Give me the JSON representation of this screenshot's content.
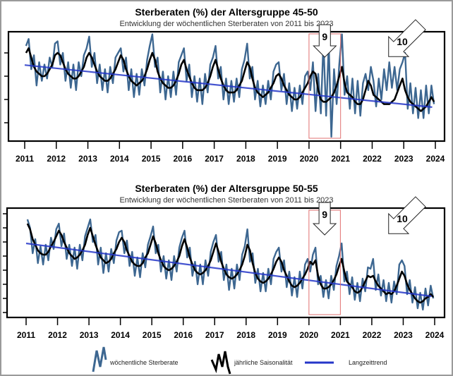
{
  "colors": {
    "weekly": "#3d6791",
    "seasonal": "#000000",
    "trend": "#2536c8",
    "highlight": "#e07070"
  },
  "legend": {
    "weekly": "wöchentliche Sterberate",
    "seasonal": "jährliche Saisonalität",
    "trend": "Langzeittrend"
  },
  "chart_data": [
    {
      "type": "line",
      "title": "Sterberaten (%) der Altersgruppe 45-50",
      "subtitle": "Entwicklung der wöchentlichen Sterberaten von 2011 bis 2023",
      "xlabel": "",
      "ylabel": "",
      "x_ticks": [
        "2011",
        "2012",
        "2013",
        "2014",
        "2015",
        "2016",
        "2017",
        "2018",
        "2019",
        "2020",
        "2021",
        "2022",
        "2023",
        "2024"
      ],
      "xlim": [
        2011,
        2024
      ],
      "y_axis": "unlabeled ticks, relative scale",
      "ylim": [
        0.2,
        4.9
      ],
      "y_ticks": [
        1,
        2,
        3,
        4
      ],
      "x_resolution": "monthly, 2011-01 to 2023-12",
      "annotations": [
        {
          "label": "9",
          "type": "down-arrow",
          "x": 2020.5
        },
        {
          "label": "10",
          "type": "diagonal-arrow",
          "x": 2022.9
        }
      ],
      "highlight_range": [
        2020,
        2021
      ],
      "series": [
        {
          "key": "weekly",
          "values": [
            4.3,
            4.6,
            3.3,
            3.9,
            2.6,
            3.6,
            2.8,
            3.5,
            2.9,
            3.8,
            3.4,
            4.4,
            4.5,
            3.5,
            4.0,
            2.8,
            3.6,
            2.5,
            3.5,
            2.4,
            3.6,
            3.0,
            3.9,
            4.2,
            4.7,
            3.4,
            4.0,
            2.7,
            3.5,
            2.4,
            3.3,
            2.3,
            3.4,
            2.7,
            3.8,
            4.0,
            4.2,
            3.2,
            3.8,
            2.4,
            3.3,
            2.1,
            3.1,
            2.2,
            3.3,
            2.6,
            3.7,
            4.3,
            4.8,
            3.4,
            3.8,
            2.3,
            3.2,
            2.0,
            3.0,
            2.1,
            3.2,
            2.2,
            3.6,
            3.9,
            4.2,
            2.8,
            3.5,
            2.1,
            3.0,
            1.9,
            2.9,
            1.8,
            3.1,
            2.3,
            3.5,
            3.8,
            4.3,
            2.9,
            3.4,
            2.0,
            2.9,
            1.8,
            2.8,
            1.9,
            2.9,
            2.1,
            3.3,
            3.7,
            4.4,
            2.9,
            3.4,
            2.0,
            2.8,
            1.7,
            2.6,
            1.8,
            2.8,
            2.0,
            3.2,
            3.5,
            3.6,
            2.4,
            3.1,
            1.8,
            2.7,
            1.5,
            2.5,
            1.6,
            2.6,
            1.8,
            3.0,
            3.2,
            2.4,
            3.6,
            1.5,
            3.1,
            1.4,
            4.5,
            1.3,
            4.4,
            0.4,
            3.3,
            1.8,
            3.5,
            4.8,
            2.2,
            3.0,
            1.6,
            2.9,
            1.4,
            2.8,
            1.3,
            2.7,
            3.1,
            2.4,
            3.4,
            2.8,
            1.7,
            2.9,
            2.0,
            3.3,
            2.4,
            3.6,
            2.5,
            3.4,
            2.4,
            3.3,
            3.6,
            4.0,
            1.6,
            2.7,
            1.4,
            2.5,
            1.2,
            2.4,
            1.2,
            2.6,
            1.4,
            2.6,
            1.8
          ]
        },
        {
          "key": "seasonal",
          "values": [
            4.0,
            4.2,
            3.8,
            3.4,
            3.2,
            3.1,
            3.0,
            3.0,
            3.1,
            3.3,
            3.5,
            3.9,
            4.0,
            3.9,
            3.6,
            3.3,
            3.1,
            3.0,
            2.9,
            2.9,
            3.0,
            3.2,
            3.4,
            3.8,
            4.0,
            3.8,
            3.5,
            3.2,
            3.0,
            2.9,
            2.8,
            2.8,
            2.9,
            3.1,
            3.3,
            3.6,
            3.9,
            3.7,
            3.3,
            3.0,
            2.8,
            2.7,
            2.6,
            2.7,
            2.8,
            3.0,
            3.3,
            3.7,
            4.0,
            3.7,
            3.2,
            2.9,
            2.7,
            2.6,
            2.5,
            2.5,
            2.6,
            2.8,
            3.1,
            3.5,
            3.7,
            3.3,
            3.0,
            2.7,
            2.5,
            2.4,
            2.4,
            2.4,
            2.5,
            2.7,
            3.0,
            3.4,
            3.7,
            3.3,
            2.9,
            2.6,
            2.4,
            2.3,
            2.3,
            2.3,
            2.4,
            2.6,
            2.8,
            3.2,
            3.6,
            3.4,
            2.9,
            2.5,
            2.3,
            2.2,
            2.1,
            2.2,
            2.3,
            2.5,
            2.7,
            3.0,
            3.1,
            2.9,
            2.6,
            2.4,
            2.2,
            2.1,
            2.0,
            2.0,
            2.1,
            2.3,
            2.5,
            2.7,
            3.0,
            3.2,
            3.1,
            2.4,
            2.0,
            1.9,
            1.9,
            2.0,
            2.1,
            2.3,
            2.6,
            3.0,
            3.4,
            2.7,
            2.3,
            2.2,
            2.1,
            1.9,
            1.8,
            1.8,
            2.0,
            2.4,
            2.8,
            2.6,
            2.2,
            2.1,
            2.0,
            1.9,
            1.8,
            1.8,
            1.8,
            1.9,
            2.0,
            2.3,
            2.6,
            2.9,
            2.4,
            2.1,
            1.9,
            1.8,
            1.7,
            1.6,
            1.5,
            1.6,
            1.7,
            1.9,
            2.1,
            1.9
          ]
        },
        {
          "key": "trend",
          "x": [
            2011,
            2023.9
          ],
          "values": [
            3.48,
            1.67
          ]
        }
      ]
    },
    {
      "type": "line",
      "title": "Sterberaten (%) der Altersgruppe 50-55",
      "subtitle": "Entwicklung der wöchentlichen Sterberaten von 2011 bis 2023",
      "xlabel": "",
      "ylabel": "",
      "x_ticks": [
        "2011",
        "2012",
        "2013",
        "2014",
        "2015",
        "2016",
        "2017",
        "2018",
        "2019",
        "2020",
        "2021",
        "2022",
        "2023",
        "2024"
      ],
      "xlim": [
        2011,
        2024
      ],
      "y_axis": "unlabeled ticks, relative scale",
      "ylim": [
        0.6,
        8.4
      ],
      "y_ticks": [
        1,
        2,
        3,
        4,
        5,
        6,
        7,
        8
      ],
      "x_resolution": "monthly, 2011-01 to 2023-12",
      "annotations": [
        {
          "label": "9",
          "type": "down-arrow",
          "x": 2020.5
        },
        {
          "label": "10",
          "type": "diagonal-arrow",
          "x": 2022.9
        }
      ],
      "highlight_range": [
        2020,
        2021
      ],
      "series": [
        {
          "key": "weekly",
          "values": [
            7.6,
            7.0,
            5.2,
            6.2,
            4.5,
            5.7,
            4.4,
            5.8,
            4.7,
            6.3,
            5.5,
            6.9,
            7.3,
            5.7,
            6.6,
            4.8,
            5.8,
            4.3,
            5.6,
            4.1,
            5.8,
            4.7,
            6.4,
            7.0,
            7.6,
            6.0,
            6.5,
            4.4,
            5.6,
            3.8,
            5.2,
            3.9,
            5.5,
            4.5,
            6.1,
            6.7,
            6.8,
            5.2,
            6.1,
            4.3,
            5.3,
            3.6,
            4.9,
            3.5,
            5.2,
            4.2,
            5.8,
            6.4,
            7.1,
            5.2,
            5.8,
            3.9,
            5.0,
            3.4,
            4.7,
            3.3,
            5.0,
            3.9,
            5.6,
            6.3,
            6.8,
            4.9,
            5.6,
            3.6,
            4.6,
            3.0,
            4.4,
            3.0,
            4.7,
            3.6,
            5.3,
            6.0,
            6.5,
            4.6,
            5.3,
            3.3,
            4.4,
            2.6,
            4.1,
            2.7,
            4.4,
            3.3,
            5.1,
            5.7,
            6.9,
            4.6,
            5.2,
            3.1,
            4.1,
            2.5,
            3.8,
            2.5,
            4.1,
            3.0,
            4.8,
            5.3,
            5.6,
            3.9,
            4.7,
            2.8,
            3.9,
            2.2,
            3.5,
            2.1,
            3.9,
            2.7,
            4.4,
            4.8,
            3.9,
            5.1,
            5.6,
            3.0,
            3.6,
            2.1,
            3.3,
            2.0,
            3.6,
            2.6,
            4.3,
            5.0,
            5.9,
            3.2,
            3.9,
            2.3,
            3.5,
            1.9,
            3.1,
            1.8,
            3.4,
            2.5,
            4.2,
            4.1,
            4.8,
            2.6,
            3.7,
            2.2,
            3.3,
            1.8,
            3.1,
            1.7,
            3.2,
            2.3,
            4.4,
            4.7,
            4.3,
            2.3,
            3.3,
            1.7,
            2.8,
            1.3,
            2.4,
            1.2,
            2.7,
            1.5,
            2.9,
            2.0
          ]
        },
        {
          "key": "seasonal",
          "values": [
            7.3,
            6.9,
            6.2,
            5.8,
            5.4,
            5.2,
            5.1,
            5.1,
            5.3,
            5.7,
            6.0,
            6.4,
            6.8,
            6.5,
            6.0,
            5.6,
            5.2,
            5.0,
            4.8,
            4.9,
            5.1,
            5.4,
            5.8,
            6.5,
            7.0,
            6.4,
            5.8,
            5.3,
            4.9,
            4.7,
            4.5,
            4.6,
            4.8,
            5.2,
            5.5,
            6.0,
            6.3,
            6.0,
            5.4,
            5.0,
            4.6,
            4.4,
            4.3,
            4.3,
            4.5,
            4.9,
            5.2,
            5.8,
            6.4,
            5.9,
            5.2,
            4.7,
            4.3,
            4.1,
            4.0,
            4.1,
            4.3,
            4.6,
            5.0,
            5.7,
            6.2,
            5.6,
            4.9,
            4.4,
            4.0,
            3.8,
            3.7,
            3.8,
            4.0,
            4.3,
            4.7,
            5.3,
            5.9,
            5.3,
            4.6,
            4.1,
            3.7,
            3.5,
            3.4,
            3.5,
            3.7,
            4.0,
            4.4,
            5.0,
            5.8,
            5.4,
            4.5,
            3.8,
            3.4,
            3.2,
            3.1,
            3.2,
            3.4,
            3.7,
            4.1,
            4.6,
            4.9,
            4.6,
            4.0,
            3.6,
            3.2,
            2.9,
            2.8,
            2.9,
            3.1,
            3.4,
            3.7,
            4.1,
            4.6,
            4.4,
            4.7,
            3.6,
            3.0,
            2.7,
            2.7,
            2.8,
            3.0,
            3.3,
            3.7,
            4.3,
            4.8,
            3.9,
            3.2,
            3.0,
            2.8,
            2.5,
            2.4,
            2.5,
            2.8,
            3.2,
            3.6,
            3.5,
            3.6,
            3.2,
            2.9,
            2.7,
            2.5,
            2.3,
            2.4,
            2.3,
            2.5,
            2.9,
            3.4,
            3.9,
            3.6,
            3.0,
            2.6,
            2.3,
            2.0,
            1.8,
            1.7,
            1.8,
            2.0,
            2.1,
            2.3,
            2.1
          ]
        },
        {
          "key": "trend",
          "x": [
            2011,
            2023.9
          ],
          "values": [
            5.9,
            2.15
          ]
        }
      ]
    }
  ]
}
